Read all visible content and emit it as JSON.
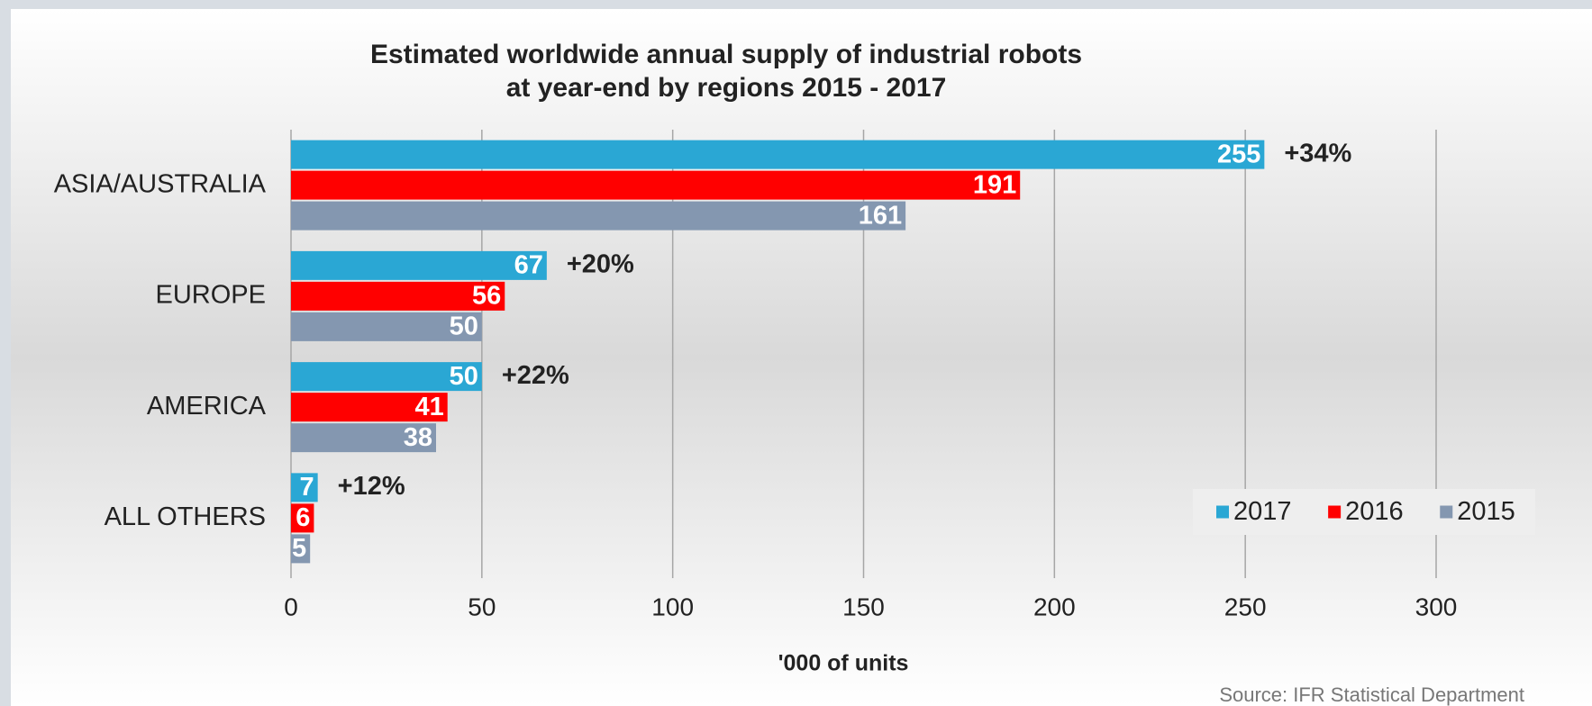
{
  "chart_data": {
    "type": "bar",
    "orientation": "horizontal",
    "title": [
      "Estimated worldwide annual supply of industrial robots",
      "at year-end by regions 2015 - 2017"
    ],
    "categories": [
      "ASIA/AUSTRALIA",
      "EUROPE",
      "AMERICA",
      "ALL OTHERS"
    ],
    "series": [
      {
        "name": "2017",
        "color": "#2aa7d4",
        "values": [
          255,
          67,
          50,
          7
        ]
      },
      {
        "name": "2016",
        "color": "#ff0000",
        "values": [
          191,
          56,
          41,
          6
        ]
      },
      {
        "name": "2015",
        "color": "#8497b0",
        "values": [
          161,
          50,
          38,
          5
        ]
      }
    ],
    "annotations": [
      "+34%",
      "+20%",
      "+22%",
      "+12%"
    ],
    "xlabel": "'000 of units",
    "xlim": [
      0,
      300
    ],
    "xticks": [
      0,
      50,
      100,
      150,
      200,
      250,
      300
    ],
    "grid": true,
    "legend": "lower right",
    "source": "Source: IFR Statistical Department"
  }
}
